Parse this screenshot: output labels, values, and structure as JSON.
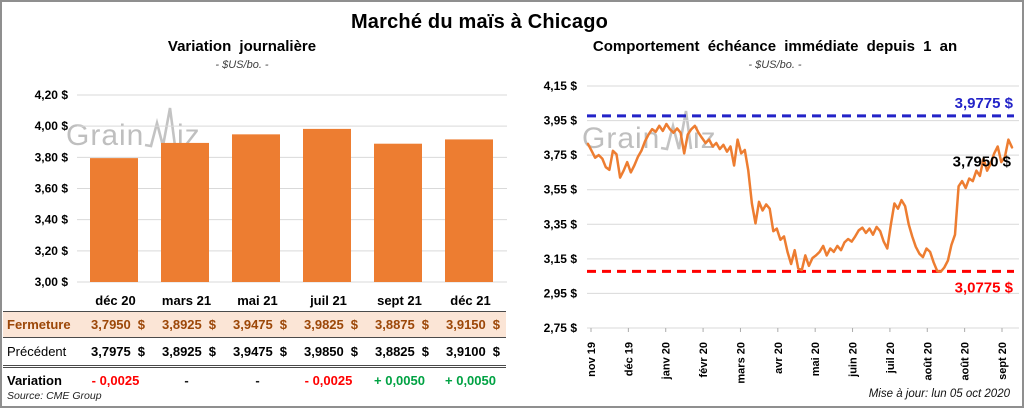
{
  "title": "Marché du maïs à Chicago",
  "watermark": "GrainWiz",
  "footer": {
    "source": "Source: CME Group",
    "updated": "Mise à jour: lun 05 oct 2020"
  },
  "colors": {
    "orange": "#ED7D31",
    "blue": "#2323C8",
    "red": "#FF0000",
    "green": "#00A243",
    "flat": "#1a1a1a",
    "grid": "#D9D9D9",
    "close_row_bg": "#FBE5D6",
    "close_row_text": "#9C4708"
  },
  "chart_data": [
    {
      "type": "bar",
      "title": "Variation journalière",
      "subtitle": "- $US/bo. -",
      "categories": [
        "déc 20",
        "mars 21",
        "mai 21",
        "juil 21",
        "sept 21",
        "déc 21"
      ],
      "values": [
        3.795,
        3.8925,
        3.9475,
        3.9825,
        3.8875,
        3.915
      ],
      "ylim": [
        3.0,
        4.2
      ],
      "grid": true,
      "legend": "none",
      "bar_color": "#ED7D31",
      "yticks": [
        {
          "value": 4.2,
          "label": "4,20 $"
        },
        {
          "value": 4.0,
          "label": "4,00 $"
        },
        {
          "value": 3.8,
          "label": "3,80 $"
        },
        {
          "value": 3.6,
          "label": "3,60 $"
        },
        {
          "value": 3.4,
          "label": "3,40 $"
        },
        {
          "value": 3.2,
          "label": "3,20 $"
        },
        {
          "value": 3.0,
          "label": "3,00 $"
        }
      ]
    },
    {
      "type": "line",
      "title": "Comportement échéance immédiate depuis 1 an",
      "subtitle": "- $US/bo. -",
      "x_labels": [
        "nov 19",
        "déc 19",
        "janv 20",
        "févr 20",
        "mars 20",
        "avr 20",
        "mai 20",
        "juin 20",
        "juil 20",
        "août 20",
        "août 20",
        "sept 20"
      ],
      "ylim": [
        2.75,
        4.15
      ],
      "grid": true,
      "line_color": "#ED7D31",
      "yticks": [
        {
          "value": 4.15,
          "label": "4,15 $"
        },
        {
          "value": 3.95,
          "label": "3,95 $"
        },
        {
          "value": 3.75,
          "label": "3,75 $"
        },
        {
          "value": 3.55,
          "label": "3,55 $"
        },
        {
          "value": 3.35,
          "label": "3,35 $"
        },
        {
          "value": 3.15,
          "label": "3,15 $"
        },
        {
          "value": 2.95,
          "label": "2,95 $"
        },
        {
          "value": 2.75,
          "label": "2,75 $"
        }
      ],
      "hlines": [
        {
          "value": 3.9775,
          "label": "3,9775 $",
          "color": "#2323C8",
          "label_position": "above-right"
        },
        {
          "value": 3.0775,
          "label": "3,0775 $",
          "color": "#FF0000",
          "label_position": "below-right"
        }
      ],
      "last_value_label": "3,7950 $",
      "values": [
        3.815,
        3.775,
        3.735,
        3.75,
        3.73,
        3.68,
        3.665,
        3.775,
        3.755,
        3.62,
        3.66,
        3.71,
        3.65,
        3.69,
        3.74,
        3.775,
        3.83,
        3.87,
        3.9,
        3.885,
        3.92,
        3.89,
        3.93,
        3.9,
        3.88,
        3.905,
        3.88,
        3.76,
        3.87,
        3.9,
        3.92,
        3.88,
        3.85,
        3.82,
        3.84,
        3.8,
        3.82,
        3.785,
        3.81,
        3.77,
        3.8,
        3.69,
        3.84,
        3.76,
        3.78,
        3.66,
        3.47,
        3.355,
        3.48,
        3.43,
        3.465,
        3.44,
        3.31,
        3.325,
        3.26,
        3.28,
        3.19,
        3.12,
        3.2,
        3.095,
        3.085,
        3.17,
        3.11,
        3.155,
        3.17,
        3.19,
        3.225,
        3.17,
        3.21,
        3.19,
        3.225,
        3.2,
        3.245,
        3.265,
        3.25,
        3.28,
        3.315,
        3.33,
        3.3,
        3.325,
        3.29,
        3.335,
        3.31,
        3.25,
        3.21,
        3.35,
        3.47,
        3.44,
        3.49,
        3.455,
        3.35,
        3.28,
        3.22,
        3.18,
        3.16,
        3.21,
        3.19,
        3.13,
        3.08,
        3.075,
        3.1,
        3.14,
        3.23,
        3.29,
        3.57,
        3.6,
        3.56,
        3.615,
        3.6,
        3.66,
        3.63,
        3.73,
        3.66,
        3.7,
        3.76,
        3.8,
        3.71,
        3.74,
        3.84,
        3.795
      ]
    }
  ],
  "table": {
    "columns": [
      "déc 20",
      "mars 21",
      "mai 21",
      "juil 21",
      "sept 21",
      "déc 21"
    ],
    "rows": [
      {
        "label": "Fermeture",
        "style": "close",
        "unit": "$",
        "values": [
          "3,7950",
          "3,8925",
          "3,9475",
          "3,9825",
          "3,8875",
          "3,9150"
        ]
      },
      {
        "label": "Précédent",
        "style": "prev",
        "unit": "$",
        "values": [
          "3,7975",
          "3,8925",
          "3,9475",
          "3,9850",
          "3,8825",
          "3,9100"
        ]
      },
      {
        "label": "Variation",
        "style": "var",
        "cells": [
          {
            "text": "- 0,0025",
            "tone": "neg"
          },
          {
            "text": "-",
            "tone": "flat"
          },
          {
            "text": "-",
            "tone": "flat"
          },
          {
            "text": "- 0,0025",
            "tone": "neg"
          },
          {
            "text": "+ 0,0050",
            "tone": "pos"
          },
          {
            "text": "+ 0,0050",
            "tone": "pos"
          }
        ]
      }
    ]
  }
}
